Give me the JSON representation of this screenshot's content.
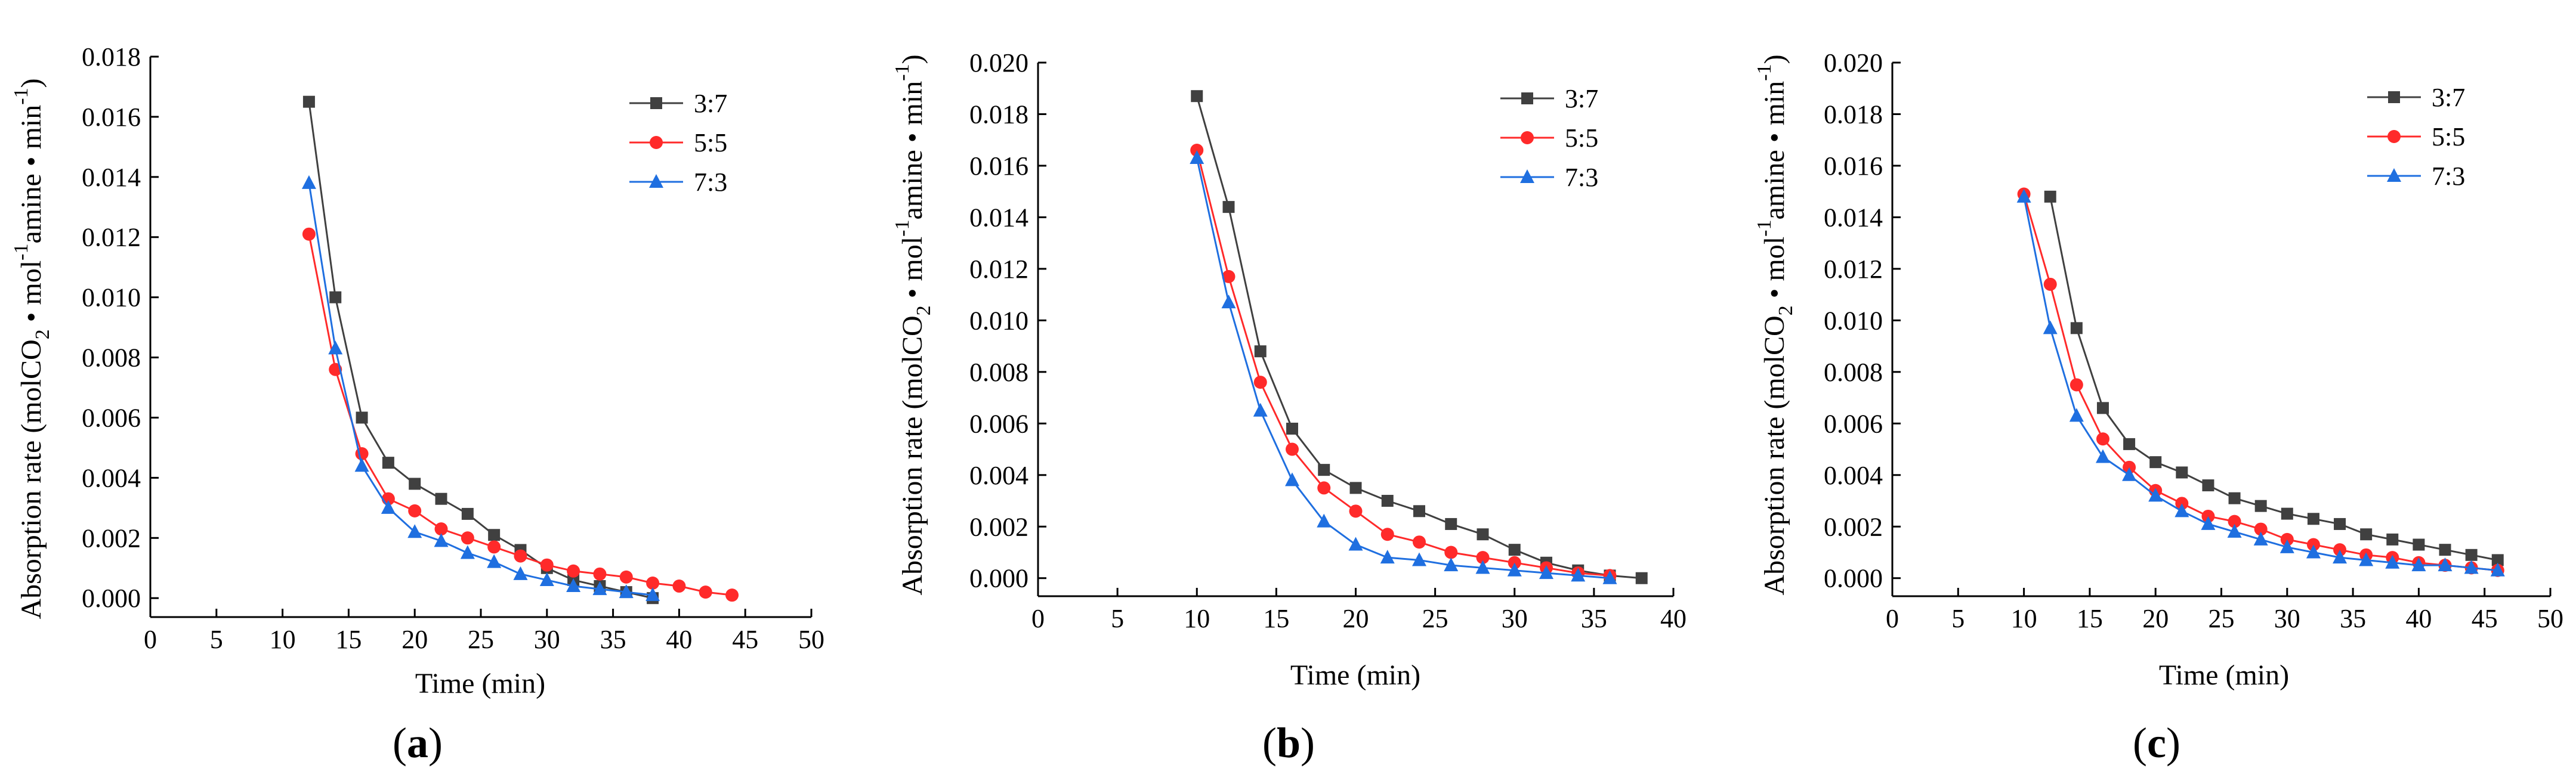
{
  "legend": [
    {
      "name": "3:7",
      "color": "#404040",
      "marker": "square"
    },
    {
      "name": "5:5",
      "color": "#ff2a2a",
      "marker": "circle"
    },
    {
      "name": "7:3",
      "color": "#1f6fe0",
      "marker": "triangle"
    }
  ],
  "chart_data": [
    {
      "type": "line",
      "panel": "(a)",
      "panel_open": "(",
      "panel_letter": "a",
      "panel_close": ")",
      "xlabel": "Time (min)",
      "ylabel_main": "Absorption rate (molCO",
      "ylabel_sub2": "2",
      "ylabel_mid": " • mol",
      "ylabel_sup1": "-1",
      "ylabel_amine": "amine • min",
      "ylabel_sup2": "-1",
      "ylabel_end": ")",
      "xlim": [
        0,
        50
      ],
      "ylim": [
        0,
        0.018
      ],
      "xticks": [
        "0",
        "5",
        "10",
        "15",
        "20",
        "25",
        "30",
        "35",
        "40",
        "45",
        "50"
      ],
      "yticks": [
        "0.000",
        "0.002",
        "0.004",
        "0.006",
        "0.008",
        "0.010",
        "0.012",
        "0.014",
        "0.016",
        "0.018"
      ],
      "series": [
        {
          "name": "3:7",
          "x": [
            12,
            14,
            16,
            18,
            20,
            22,
            24,
            26,
            28,
            30,
            32,
            34,
            36,
            38
          ],
          "values": [
            0.0165,
            0.01,
            0.006,
            0.0045,
            0.0038,
            0.0033,
            0.0028,
            0.0021,
            0.0016,
            0.001,
            0.0006,
            0.0004,
            0.0002,
            0.0
          ]
        },
        {
          "name": "5:5",
          "x": [
            12,
            14,
            16,
            18,
            20,
            22,
            24,
            26,
            28,
            30,
            32,
            34,
            36,
            38,
            40,
            42,
            44
          ],
          "values": [
            0.0121,
            0.0076,
            0.0048,
            0.0033,
            0.0029,
            0.0023,
            0.002,
            0.0017,
            0.0014,
            0.0011,
            0.0009,
            0.0008,
            0.0007,
            0.0005,
            0.0004,
            0.0002,
            0.0001
          ]
        },
        {
          "name": "7:3",
          "x": [
            12,
            14,
            16,
            18,
            20,
            22,
            24,
            26,
            28,
            30,
            32,
            34,
            36,
            38
          ],
          "values": [
            0.0138,
            0.0083,
            0.0044,
            0.003,
            0.0022,
            0.0019,
            0.0015,
            0.0012,
            0.0008,
            0.0006,
            0.0004,
            0.0003,
            0.0002,
            0.0001
          ]
        }
      ]
    },
    {
      "type": "line",
      "panel": "(b)",
      "panel_open": "(",
      "panel_letter": "b",
      "panel_close": ")",
      "xlabel": "Time (min)",
      "ylabel_main": "Absorption rate (molCO",
      "ylabel_sub2": "2",
      "ylabel_mid": " • mol",
      "ylabel_sup1": "-1",
      "ylabel_amine": "amine • min",
      "ylabel_sup2": "-1",
      "ylabel_end": ")",
      "xlim": [
        0,
        40
      ],
      "ylim": [
        0,
        0.02
      ],
      "xticks": [
        "0",
        "5",
        "10",
        "15",
        "20",
        "25",
        "30",
        "35",
        "40"
      ],
      "yticks": [
        "0.000",
        "0.002",
        "0.004",
        "0.006",
        "0.008",
        "0.010",
        "0.012",
        "0.014",
        "0.016",
        "0.018",
        "0.020"
      ],
      "series": [
        {
          "name": "3:7",
          "x": [
            10,
            12,
            14,
            16,
            18,
            20,
            22,
            24,
            26,
            28,
            30,
            32,
            34,
            36,
            38
          ],
          "values": [
            0.0187,
            0.0144,
            0.0088,
            0.0058,
            0.0042,
            0.0035,
            0.003,
            0.0026,
            0.0021,
            0.0017,
            0.0011,
            0.0006,
            0.0003,
            0.0001,
            0.0
          ]
        },
        {
          "name": "5:5",
          "x": [
            10,
            12,
            14,
            16,
            18,
            20,
            22,
            24,
            26,
            28,
            30,
            32,
            34,
            36
          ],
          "values": [
            0.0166,
            0.0117,
            0.0076,
            0.005,
            0.0035,
            0.0026,
            0.0017,
            0.0014,
            0.001,
            0.0008,
            0.0006,
            0.0004,
            0.0002,
            0.0001
          ]
        },
        {
          "name": "7:3",
          "x": [
            10,
            12,
            14,
            16,
            18,
            20,
            22,
            24,
            26,
            28,
            30,
            32,
            34,
            36
          ],
          "values": [
            0.0163,
            0.0107,
            0.0065,
            0.0038,
            0.0022,
            0.0013,
            0.0008,
            0.0007,
            0.0005,
            0.0004,
            0.0003,
            0.0002,
            0.0001,
            0.0
          ]
        }
      ]
    },
    {
      "type": "line",
      "panel": "(c)",
      "panel_open": "(",
      "panel_letter": "c",
      "panel_close": ")",
      "xlabel": "Time (min)",
      "ylabel_main": "Absorption rate (molCO",
      "ylabel_sub2": "2",
      "ylabel_mid": " • mol",
      "ylabel_sup1": "-1",
      "ylabel_amine": "amine • min",
      "ylabel_sup2": "-1",
      "ylabel_end": ")",
      "xlim": [
        0,
        50
      ],
      "ylim": [
        0,
        0.02
      ],
      "xticks": [
        "0",
        "5",
        "10",
        "15",
        "20",
        "25",
        "30",
        "35",
        "40",
        "45",
        "50"
      ],
      "yticks": [
        "0.000",
        "0.002",
        "0.004",
        "0.006",
        "0.008",
        "0.010",
        "0.012",
        "0.014",
        "0.016",
        "0.018",
        "0.020"
      ],
      "series": [
        {
          "name": "3:7",
          "x": [
            12,
            14,
            16,
            18,
            20,
            22,
            24,
            26,
            28,
            30,
            32,
            34,
            36,
            38,
            40,
            42,
            44,
            46
          ],
          "values": [
            0.0148,
            0.0097,
            0.0066,
            0.0052,
            0.0045,
            0.0041,
            0.0036,
            0.0031,
            0.0028,
            0.0025,
            0.0023,
            0.0021,
            0.0017,
            0.0015,
            0.0013,
            0.0011,
            0.0009,
            0.0007
          ]
        },
        {
          "name": "5:5",
          "x": [
            10,
            12,
            14,
            16,
            18,
            20,
            22,
            24,
            26,
            28,
            30,
            32,
            34,
            36,
            38,
            40,
            42,
            44,
            46
          ],
          "values": [
            0.0149,
            0.0114,
            0.0075,
            0.0054,
            0.0043,
            0.0034,
            0.0029,
            0.0024,
            0.0022,
            0.0019,
            0.0015,
            0.0013,
            0.0011,
            0.0009,
            0.0008,
            0.0006,
            0.0005,
            0.0004,
            0.0003
          ]
        },
        {
          "name": "7:3",
          "x": [
            10,
            12,
            14,
            16,
            18,
            20,
            22,
            24,
            26,
            28,
            30,
            32,
            34,
            36,
            38,
            40,
            42,
            44,
            46
          ],
          "values": [
            0.0148,
            0.0097,
            0.0063,
            0.0047,
            0.004,
            0.0032,
            0.0026,
            0.0021,
            0.0018,
            0.0015,
            0.0012,
            0.001,
            0.0008,
            0.0007,
            0.0006,
            0.0005,
            0.0005,
            0.0004,
            0.0003
          ]
        }
      ]
    }
  ]
}
